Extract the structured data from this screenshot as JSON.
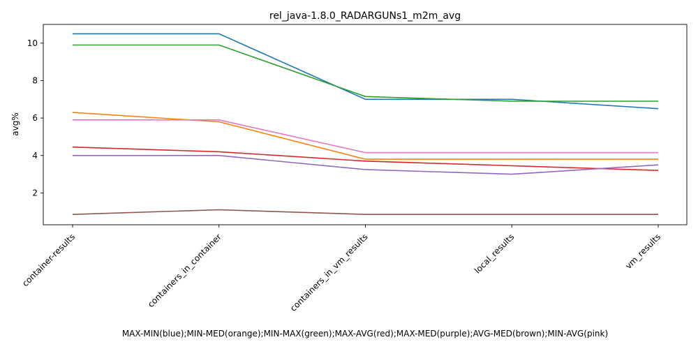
{
  "chart_data": {
    "type": "line",
    "title": "rel_java-1.8.0_RADARGUNs1_m2m_avg",
    "xlabel": "MAX-MIN(blue);MIN-MED(orange);MIN-MAX(green);MAX-AVG(red);MAX-MED(purple);AVG-MED(brown);MIN-AVG(pink)",
    "ylabel": "avg%",
    "categories": [
      "container-results",
      "containers_in_container",
      "containers_in_vm_results",
      "local_results",
      "vm_results"
    ],
    "ylim": [
      0.3,
      11.0
    ],
    "yticks": [
      2,
      4,
      6,
      8,
      10
    ],
    "grid": false,
    "series": [
      {
        "color": "#1f77b4",
        "values": [
          10.5,
          10.5,
          7.0,
          7.0,
          6.5
        ]
      },
      {
        "color": "#ff7f0e",
        "values": [
          6.3,
          5.8,
          3.8,
          3.8,
          3.8
        ]
      },
      {
        "color": "#2ca02c",
        "values": [
          9.9,
          9.9,
          7.15,
          6.9,
          6.9
        ]
      },
      {
        "color": "#d62728",
        "values": [
          4.45,
          4.2,
          3.7,
          3.45,
          3.2
        ]
      },
      {
        "color": "#9467bd",
        "values": [
          4.0,
          4.0,
          3.25,
          3.0,
          3.5
        ]
      },
      {
        "color": "#8c564b",
        "values": [
          0.85,
          1.1,
          0.85,
          0.85,
          0.85
        ]
      },
      {
        "color": "#e377c2",
        "values": [
          5.9,
          5.9,
          4.15,
          4.15,
          4.15
        ]
      }
    ]
  }
}
